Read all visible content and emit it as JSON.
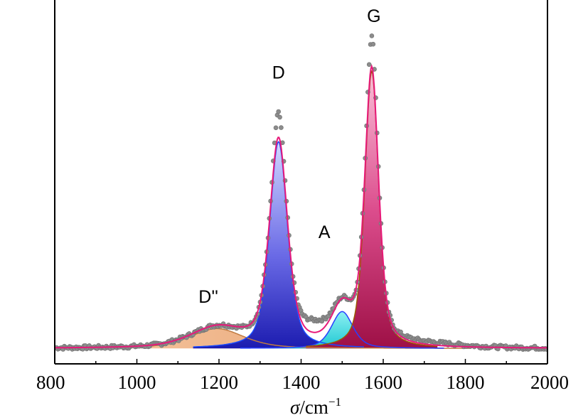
{
  "chart_data": {
    "type": "area",
    "xlabel_symbol": "σ",
    "xlabel_unit": "/cm",
    "xlabel_exp": "−1",
    "xlim": [
      800,
      2000
    ],
    "ylim": [
      0,
      1.0
    ],
    "x_ticks": [
      "800",
      "1000",
      "1200",
      "1400",
      "1600",
      "1800",
      "2000"
    ],
    "y_ticks_shown": false,
    "grid": false,
    "legend": "none",
    "colors": {
      "data_points": "#8c8c8c",
      "fit_envelope": "#e8197a",
      "D_fill_top": "#cdd3ff",
      "D_fill_bottom": "#2323b4",
      "G_fill_top": "#f8b2cf",
      "G_fill_bottom": "#a8144e",
      "A_fill": "#33d6dc",
      "Dpp_fill": "#e8a576",
      "D_edge": "#1a4cff",
      "A_edge": "#2840ff",
      "G_edge": "#9a5a00",
      "Dpp_edge": "#c07a40"
    },
    "peaks": [
      {
        "label": "D''",
        "center": 1195,
        "height": 0.063,
        "width": 155
      },
      {
        "label": "D",
        "center": 1345,
        "height": 0.655,
        "width": 52
      },
      {
        "label": "A",
        "center": 1500,
        "height": 0.117,
        "width": 62
      },
      {
        "label": "G",
        "center": 1572,
        "height": 0.878,
        "width": 40
      }
    ],
    "baseline": 0.015,
    "data_maxima": {
      "D": 0.76,
      "G": 1.0
    }
  }
}
